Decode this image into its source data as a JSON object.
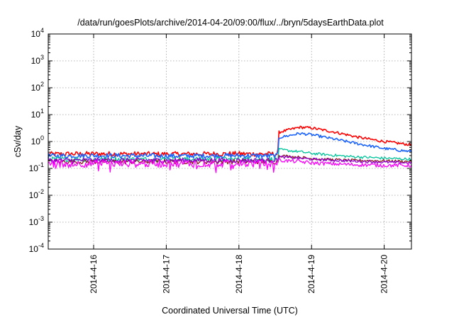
{
  "chart_data": {
    "type": "line",
    "title": "/data/run/goesPlots/archive/2014-04-20/09:00/flux/../bryn/5daysEarthData.plot",
    "xlabel": "Coordinated Universal Time (UTC)",
    "ylabel": "cSv/day",
    "y_scale": "log",
    "ylim": [
      0.0001,
      10000
    ],
    "y_ticks": [
      {
        "base": "10",
        "exp": "-4",
        "value": 0.0001
      },
      {
        "base": "10",
        "exp": "-3",
        "value": 0.001
      },
      {
        "base": "10",
        "exp": "-2",
        "value": 0.01
      },
      {
        "base": "10",
        "exp": "-1",
        "value": 0.1
      },
      {
        "base": "10",
        "exp": "0",
        "value": 1
      },
      {
        "base": "10",
        "exp": "1",
        "value": 10
      },
      {
        "base": "10",
        "exp": "2",
        "value": 100
      },
      {
        "base": "10",
        "exp": "3",
        "value": 1000
      },
      {
        "base": "10",
        "exp": "4",
        "value": 10000
      }
    ],
    "xlim": [
      "2014-04-15 09:00",
      "2014-04-20 09:00"
    ],
    "x_ticks": [
      {
        "label": "2014-4-16",
        "value": "2014-04-16 00:00"
      },
      {
        "label": "2014-4-17",
        "value": "2014-04-17 00:00"
      },
      {
        "label": "2014-4-18",
        "value": "2014-04-18 00:00"
      },
      {
        "label": "2014-4-19",
        "value": "2014-04-19 00:00"
      },
      {
        "label": "2014-4-20",
        "value": "2014-04-20 00:00"
      }
    ],
    "grid": true,
    "event_time": "2014-04-18 13:00",
    "series": [
      {
        "color": "#ff0000",
        "values": [
          [
            "2014-04-15 09:00",
            0.34
          ],
          [
            "2014-04-16 00:00",
            0.35
          ],
          [
            "2014-04-17 00:00",
            0.34
          ],
          [
            "2014-04-18 00:00",
            0.35
          ],
          [
            "2014-04-18 12:50",
            0.34
          ],
          [
            "2014-04-18 13:10",
            2.2
          ],
          [
            "2014-04-18 20:00",
            3.4
          ],
          [
            "2014-04-19 00:00",
            3.2
          ],
          [
            "2014-04-19 08:00",
            2.2
          ],
          [
            "2014-04-19 16:00",
            1.4
          ],
          [
            "2014-04-20 00:00",
            1.0
          ],
          [
            "2014-04-20 09:00",
            0.75
          ]
        ]
      },
      {
        "color": "#1a63ff",
        "values": [
          [
            "2014-04-15 09:00",
            0.29
          ],
          [
            "2014-04-16 00:00",
            0.3
          ],
          [
            "2014-04-17 00:00",
            0.29
          ],
          [
            "2014-04-18 00:00",
            0.3
          ],
          [
            "2014-04-18 12:50",
            0.29
          ],
          [
            "2014-04-18 13:10",
            1.4
          ],
          [
            "2014-04-18 20:00",
            2.0
          ],
          [
            "2014-04-19 00:00",
            1.8
          ],
          [
            "2014-04-19 08:00",
            1.2
          ],
          [
            "2014-04-19 16:00",
            0.8
          ],
          [
            "2014-04-20 00:00",
            0.55
          ],
          [
            "2014-04-20 09:00",
            0.42
          ]
        ]
      },
      {
        "color": "#00c49a",
        "values": [
          [
            "2014-04-15 09:00",
            0.22
          ],
          [
            "2014-04-16 00:00",
            0.22
          ],
          [
            "2014-04-17 00:00",
            0.22
          ],
          [
            "2014-04-18 00:00",
            0.22
          ],
          [
            "2014-04-18 12:50",
            0.22
          ],
          [
            "2014-04-18 13:10",
            0.5
          ],
          [
            "2014-04-18 20:00",
            0.42
          ],
          [
            "2014-04-19 00:00",
            0.36
          ],
          [
            "2014-04-19 12:00",
            0.28
          ],
          [
            "2014-04-20 00:00",
            0.24
          ],
          [
            "2014-04-20 09:00",
            0.22
          ]
        ]
      },
      {
        "color": "#8b1a1a",
        "values": [
          [
            "2014-04-15 09:00",
            0.18
          ],
          [
            "2014-04-16 00:00",
            0.18
          ],
          [
            "2014-04-17 00:00",
            0.18
          ],
          [
            "2014-04-18 00:00",
            0.18
          ],
          [
            "2014-04-18 12:50",
            0.18
          ],
          [
            "2014-04-18 13:10",
            0.3
          ],
          [
            "2014-04-18 20:00",
            0.26
          ],
          [
            "2014-04-19 00:00",
            0.23
          ],
          [
            "2014-04-19 12:00",
            0.2
          ],
          [
            "2014-04-20 00:00",
            0.19
          ],
          [
            "2014-04-20 09:00",
            0.18
          ]
        ]
      },
      {
        "color": "#9400d3",
        "values": [
          [
            "2014-04-15 09:00",
            0.2
          ],
          [
            "2014-04-16 00:00",
            0.2
          ],
          [
            "2014-04-17 00:00",
            0.2
          ],
          [
            "2014-04-18 00:00",
            0.2
          ],
          [
            "2014-04-18 12:50",
            0.2
          ],
          [
            "2014-04-18 13:10",
            0.27
          ],
          [
            "2014-04-18 20:00",
            0.24
          ],
          [
            "2014-04-19 00:00",
            0.22
          ],
          [
            "2014-04-19 12:00",
            0.19
          ],
          [
            "2014-04-20 00:00",
            0.17
          ],
          [
            "2014-04-20 09:00",
            0.16
          ]
        ]
      },
      {
        "color": "#ff00ff",
        "values": [
          [
            "2014-04-15 09:00",
            0.15
          ],
          [
            "2014-04-16 00:00",
            0.15
          ],
          [
            "2014-04-17 00:00",
            0.15
          ],
          [
            "2014-04-18 00:00",
            0.15
          ],
          [
            "2014-04-18 12:50",
            0.15
          ],
          [
            "2014-04-18 13:10",
            0.2
          ],
          [
            "2014-04-18 20:00",
            0.18
          ],
          [
            "2014-04-19 00:00",
            0.16
          ],
          [
            "2014-04-19 12:00",
            0.14
          ],
          [
            "2014-04-20 00:00",
            0.13
          ],
          [
            "2014-04-20 09:00",
            0.13
          ]
        ]
      }
    ]
  }
}
